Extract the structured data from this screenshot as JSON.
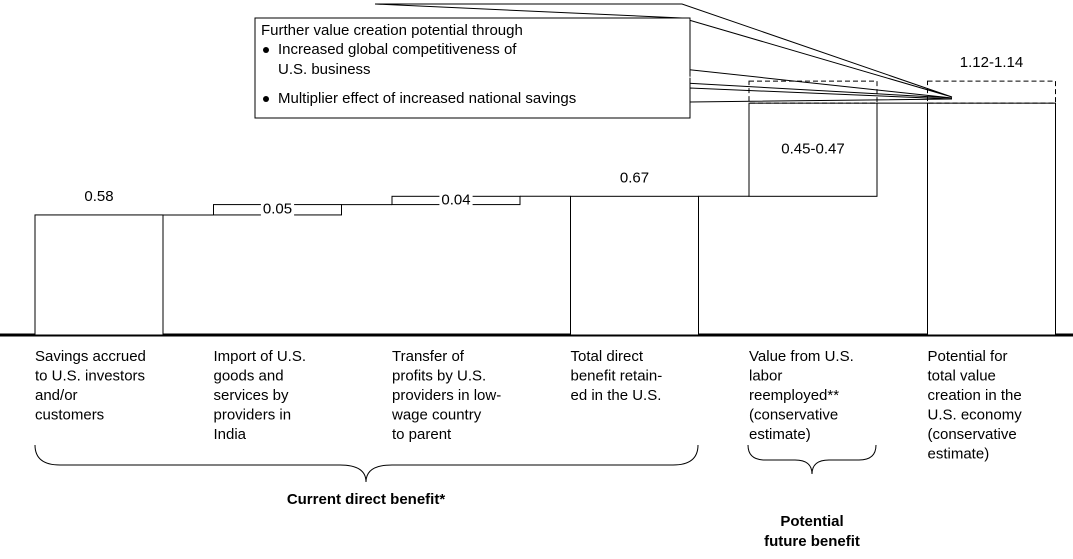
{
  "chart_data": {
    "type": "waterfall",
    "categories": [
      [
        "Savings accrued",
        "to U.S. investors",
        "and/or",
        "customers"
      ],
      [
        "Import of U.S.",
        "goods and",
        "services by",
        "providers in",
        "India"
      ],
      [
        "Transfer of",
        "profits by U.S.",
        "providers in low-",
        "wage country",
        "to parent"
      ],
      [
        "Total direct",
        "benefit retain-",
        "ed in the U.S."
      ],
      [
        "Value from U.S.",
        "labor",
        "reemployed**",
        "(conservative",
        "estimate)"
      ],
      [
        "Potential for",
        "total value",
        "creation in the",
        "U.S. economy",
        "(conservative",
        "estimate)"
      ]
    ],
    "measures": [
      "total",
      "delta",
      "delta",
      "total",
      "delta",
      "total"
    ],
    "values": [
      0.58,
      0.05,
      0.04,
      0.67,
      0.45,
      1.12
    ],
    "values_high": [
      null,
      null,
      null,
      null,
      0.47,
      1.14
    ],
    "value_labels": [
      "0.58",
      "0.05",
      "0.04",
      "0.67",
      "0.45-0.47",
      "1.12-1.14"
    ],
    "color": "#ffffff",
    "groups": [
      {
        "label": [
          "Current direct benefit*"
        ]
      },
      {
        "label": [
          "Potential",
          "future benefit"
        ]
      }
    ],
    "annotation": {
      "title": "Further value creation potential through",
      "bullets": [
        [
          "Increased global competitiveness of",
          "U.S. business"
        ],
        [
          "Multiplier effect of increased national savings"
        ]
      ]
    }
  }
}
